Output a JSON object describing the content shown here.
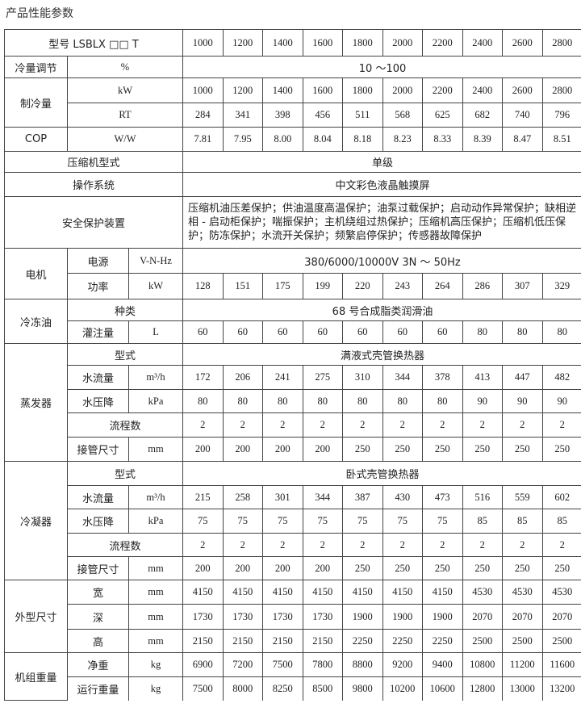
{
  "title": "产品性能参数",
  "header": {
    "label": "型号 LSBLX □□ T",
    "values": [
      "1000",
      "1200",
      "1400",
      "1600",
      "1800",
      "2000",
      "2200",
      "2400",
      "2600",
      "2800"
    ]
  },
  "sections": [
    {
      "label": "冷量调节",
      "rows": [
        {
          "unit": "%",
          "span": "10 ～100"
        }
      ]
    },
    {
      "label": "制冷量",
      "rows": [
        {
          "unit": "kW",
          "values": [
            "1000",
            "1200",
            "1400",
            "1600",
            "1800",
            "2000",
            "2200",
            "2400",
            "2600",
            "2800"
          ]
        },
        {
          "unit": "RT",
          "values": [
            "284",
            "341",
            "398",
            "456",
            "511",
            "568",
            "625",
            "682",
            "740",
            "796"
          ]
        }
      ]
    },
    {
      "label": "COP",
      "rows": [
        {
          "unit": "W/W",
          "values": [
            "7.81",
            "7.95",
            "8.00",
            "8.04",
            "8.18",
            "8.23",
            "8.33",
            "8.39",
            "8.47",
            "8.51"
          ]
        }
      ]
    },
    {
      "label": "压缩机型式",
      "span": "单级"
    },
    {
      "label": "操作系统",
      "span": "中文彩色液晶触摸屏"
    },
    {
      "label": "安全保护装置",
      "span": "压缩机油压差保护；供油温度高温保护；油泵过载保护；启动动作异常保护；缺相逆相 - 启动柜保护；喘振保护；主机绕组过热保护；压缩机高压保护；压缩机低压保护；防冻保护；水流开关保护；频繁启停保护；传感器故障保护"
    },
    {
      "label": "电机",
      "rows": [
        {
          "sub": "电源",
          "unit": "V-N-Hz",
          "span": "380/6000/10000V 3N ～ 50Hz"
        },
        {
          "sub": "功率",
          "unit": "kW",
          "values": [
            "128",
            "151",
            "175",
            "199",
            "220",
            "243",
            "264",
            "286",
            "307",
            "329"
          ]
        }
      ]
    },
    {
      "label": "冷冻油",
      "rows": [
        {
          "sub": "种类",
          "span": "68 号合成脂类润滑油"
        },
        {
          "sub": "灌注量",
          "unit": "L",
          "values": [
            "60",
            "60",
            "60",
            "60",
            "60",
            "60",
            "60",
            "80",
            "80",
            "80"
          ]
        }
      ]
    },
    {
      "label": "蒸发器",
      "rows": [
        {
          "sub": "型式",
          "span": "满液式壳管换热器"
        },
        {
          "sub": "水流量",
          "unit": "m³/h",
          "values": [
            "172",
            "206",
            "241",
            "275",
            "310",
            "344",
            "378",
            "413",
            "447",
            "482"
          ]
        },
        {
          "sub": "水压降",
          "unit": "kPa",
          "values": [
            "80",
            "80",
            "80",
            "80",
            "80",
            "80",
            "80",
            "90",
            "90",
            "90"
          ]
        },
        {
          "sub": "流程数",
          "values": [
            "2",
            "2",
            "2",
            "2",
            "2",
            "2",
            "2",
            "2",
            "2",
            "2"
          ]
        },
        {
          "sub": "接管尺寸",
          "unit": "mm",
          "values": [
            "200",
            "200",
            "200",
            "200",
            "250",
            "250",
            "250",
            "250",
            "250",
            "250"
          ]
        }
      ]
    },
    {
      "label": "冷凝器",
      "rows": [
        {
          "sub": "型式",
          "span": "卧式壳管换热器"
        },
        {
          "sub": "水流量",
          "unit": "m³/h",
          "values": [
            "215",
            "258",
            "301",
            "344",
            "387",
            "430",
            "473",
            "516",
            "559",
            "602"
          ]
        },
        {
          "sub": "水压降",
          "unit": "kPa",
          "values": [
            "75",
            "75",
            "75",
            "75",
            "75",
            "75",
            "75",
            "85",
            "85",
            "85"
          ]
        },
        {
          "sub": "流程数",
          "values": [
            "2",
            "2",
            "2",
            "2",
            "2",
            "2",
            "2",
            "2",
            "2",
            "2"
          ]
        },
        {
          "sub": "接管尺寸",
          "unit": "mm",
          "values": [
            "200",
            "200",
            "200",
            "200",
            "250",
            "250",
            "250",
            "250",
            "250",
            "250"
          ]
        }
      ]
    },
    {
      "label": "外型尺寸",
      "rows": [
        {
          "sub": "宽",
          "unit": "mm",
          "values": [
            "4150",
            "4150",
            "4150",
            "4150",
            "4150",
            "4150",
            "4150",
            "4530",
            "4530",
            "4530"
          ]
        },
        {
          "sub": "深",
          "unit": "mm",
          "values": [
            "1730",
            "1730",
            "1730",
            "1730",
            "1900",
            "1900",
            "1900",
            "2070",
            "2070",
            "2070"
          ]
        },
        {
          "sub": "高",
          "unit": "mm",
          "values": [
            "2150",
            "2150",
            "2150",
            "2150",
            "2250",
            "2250",
            "2250",
            "2500",
            "2500",
            "2500"
          ]
        }
      ]
    },
    {
      "label": "机组重量",
      "rows": [
        {
          "sub": "净重",
          "unit": "kg",
          "values": [
            "6900",
            "7200",
            "7500",
            "7800",
            "8800",
            "9200",
            "9400",
            "10800",
            "11200",
            "11600"
          ]
        },
        {
          "sub": "运行重量",
          "unit": "kg",
          "values": [
            "7500",
            "8000",
            "8250",
            "8500",
            "9800",
            "10200",
            "10600",
            "12800",
            "13000",
            "13200"
          ]
        }
      ]
    }
  ]
}
